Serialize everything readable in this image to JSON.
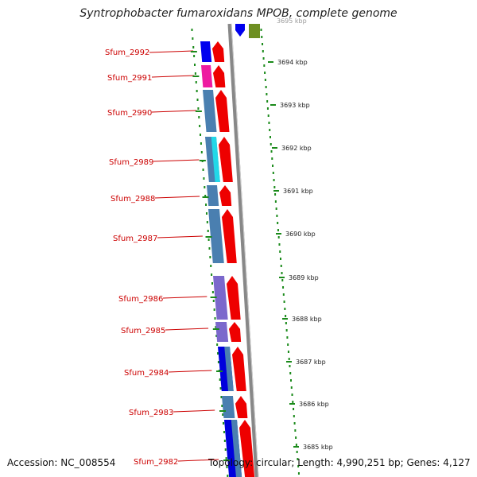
{
  "title": "Syntrophobacter fumaroxidans MPOB, complete genome",
  "footer": {
    "accession": "Accession: NC_008554",
    "topology": "Topology: circular; Length: 4,990,251 bp; Genes: 4,127"
  },
  "colors": {
    "label": "#cc0000",
    "tick": "#1a8a1a",
    "arrow": "#ee0000",
    "backbone": "#888888"
  },
  "top_cut_label": "3695 kbp",
  "genes": [
    {
      "name": "Sfum_2992",
      "color": "#0000ee"
    },
    {
      "name": "Sfum_2991",
      "color": "#ee1aa0"
    },
    {
      "name": "Sfum_2990",
      "color": "#4a7fb0"
    },
    {
      "name": "Sfum_2989",
      "color": "#4a7fb0",
      "inner_color": "#22d8e8"
    },
    {
      "name": "Sfum_2988",
      "color": "#4a7fb0"
    },
    {
      "name": "Sfum_2987",
      "color": "#4a7fb0"
    },
    {
      "name": "Sfum_2986",
      "color": "#7b68cc"
    },
    {
      "name": "Sfum_2985",
      "color": "#7b68cc"
    },
    {
      "name": "Sfum_2984",
      "color": "#0000dd",
      "inner_color": "#4a7fb0"
    },
    {
      "name": "Sfum_2983",
      "color": "#4a7fb0"
    },
    {
      "name": "Sfum_2982",
      "color": "#0000dd",
      "inner_color": "#4a7fb0"
    }
  ],
  "kbp_labels": [
    "3694 kbp",
    "3693 kbp",
    "3692 kbp",
    "3691 kbp",
    "3690 kbp",
    "3689 kbp",
    "3688 kbp",
    "3687 kbp",
    "3686 kbp",
    "3685 kbp"
  ]
}
